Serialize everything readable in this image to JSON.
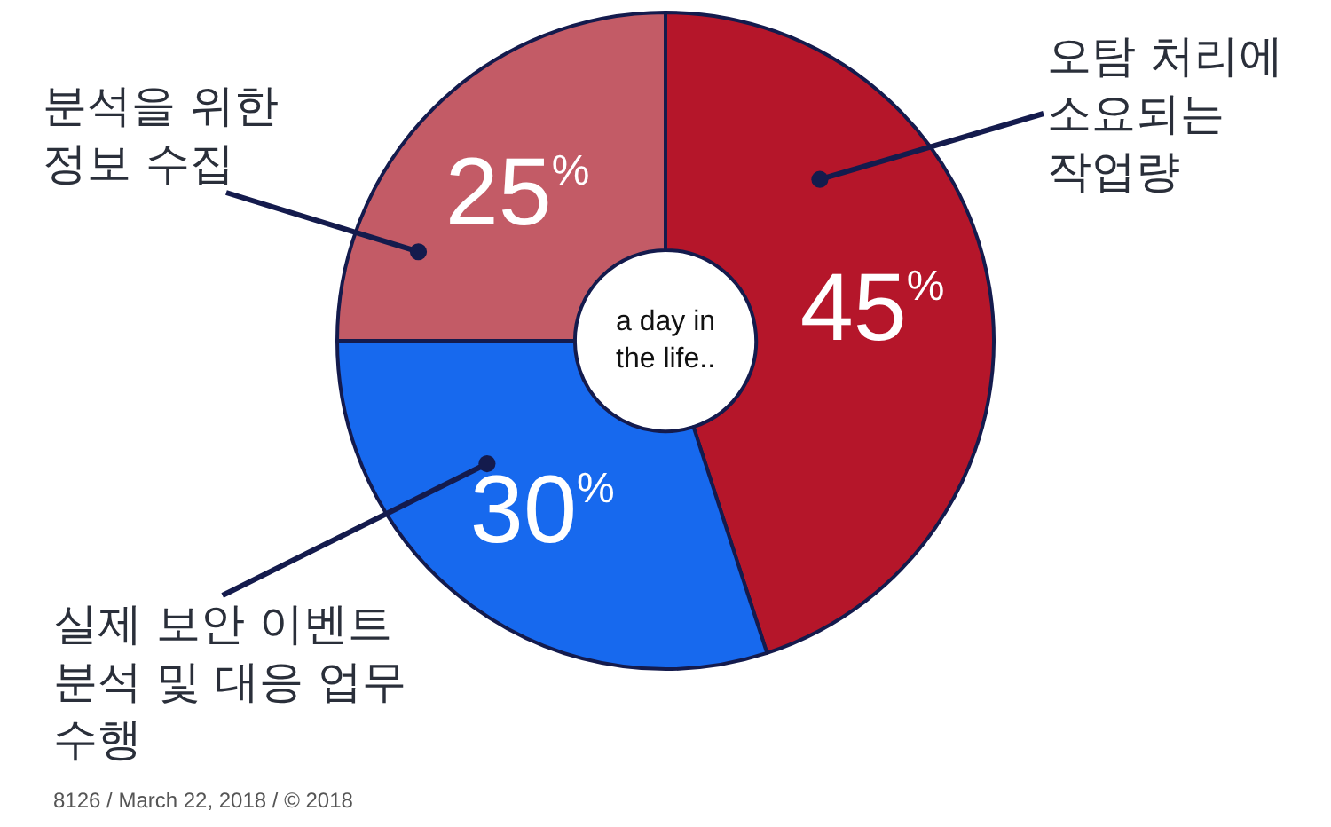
{
  "chart_data": {
    "type": "donut",
    "categories": [
      "오탐 처리에\n소요되는\n작업량",
      "실제 보안 이벤트\n분석 및 대응 업무\n수행",
      "분석을 위한\n정보 수집"
    ],
    "values": [
      45,
      30,
      25
    ],
    "colors": [
      "#b5162a",
      "#1769ee",
      "#c35b66"
    ],
    "value_labels": [
      "45$^{%}$",
      "30$^{%}$",
      "25$^{%}$"
    ],
    "annotations": [
      "a day in\nthe life..",
      "8126 / March 22, 2018 / © 2018"
    ]
  }
}
